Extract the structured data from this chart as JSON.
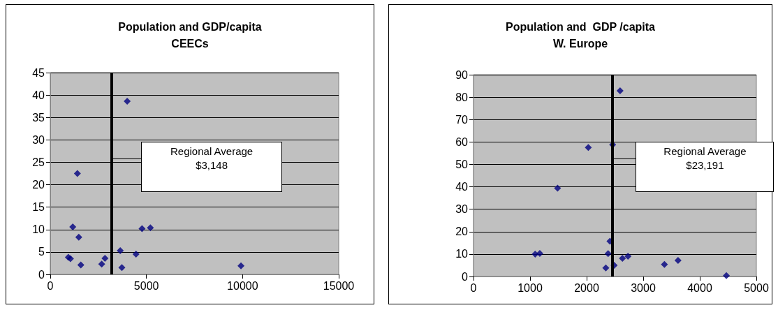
{
  "chart_data": [
    {
      "type": "scatter",
      "title": "Population and GDP/capita\nCEECs",
      "x": [
        940,
        1048,
        1169,
        1410,
        1482,
        1590,
        2675,
        2844,
        3639,
        3723,
        4000,
        4458,
        4772,
        5205,
        9917
      ],
      "series": [
        {
          "color": "#000080",
          "values": [
            3.8,
            3.5,
            10.6,
            22.5,
            8.3,
            2.1,
            2.3,
            3.6,
            5.3,
            1.5,
            38.6,
            4.5,
            10.2,
            10.4,
            1.9
          ]
        }
      ],
      "xlim": [
        0,
        15000
      ],
      "xticks": [
        0,
        5000,
        10000,
        15000
      ],
      "ylim": [
        0,
        45
      ],
      "yticks": [
        0,
        5,
        10,
        15,
        20,
        25,
        30,
        35,
        40,
        45
      ],
      "grid": "y",
      "marker": "diamond",
      "ref_lines": [
        {
          "axis": "x",
          "value": 3200,
          "label": "Regional Average\n$3,148",
          "color": "#000000"
        }
      ]
    },
    {
      "type": "scatter",
      "title": "Population and  GDP /capita\nW. Europe",
      "x": [
        1090,
        1172,
        1486,
        2029,
        2339,
        2380,
        2412,
        2460,
        2486,
        2591,
        2633,
        2731,
        3375,
        3616,
        4470
      ],
      "series": [
        {
          "color": "#000080",
          "values": [
            10.0,
            10.3,
            39.4,
            57.5,
            3.8,
            10.2,
            15.7,
            58.8,
            5.0,
            82.8,
            8.1,
            9.0,
            5.4,
            7.2,
            0.4
          ]
        }
      ],
      "xlim": [
        0,
        5000
      ],
      "xticks": [
        0,
        1000,
        2000,
        3000,
        4000,
        5000
      ],
      "ylim": [
        0,
        90
      ],
      "yticks": [
        0,
        10,
        20,
        30,
        40,
        50,
        60,
        70,
        80,
        90
      ],
      "grid": "y",
      "marker": "diamond",
      "ref_lines": [
        {
          "axis": "x",
          "value": 2450,
          "label": "Regional Average\n$23,191",
          "color": "#000000"
        }
      ]
    }
  ]
}
